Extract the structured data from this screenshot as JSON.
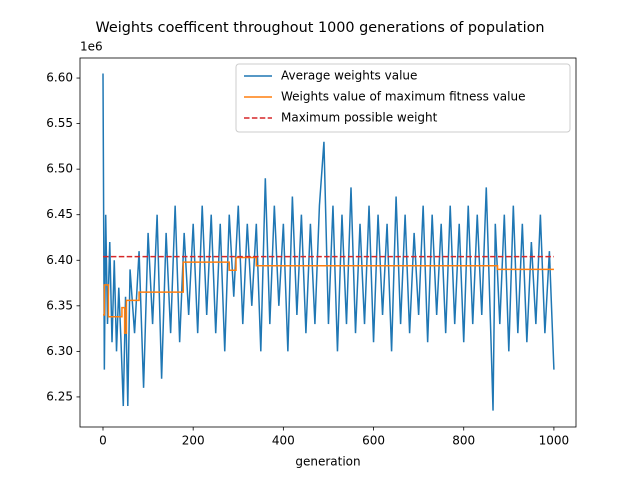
{
  "chart_data": {
    "type": "line",
    "title": "Weights coefficent throughout 1000 generations of population",
    "x_label": "generation",
    "y_offset_label": "1e6",
    "xlim": [
      -51,
      1049
    ],
    "ylim": [
      6.217,
      6.622
    ],
    "xticks": [
      0,
      200,
      400,
      600,
      800,
      1000
    ],
    "yticks": [
      6.25,
      {
        "value": 6.3,
        "label": "6.30"
      },
      6.35,
      {
        "value": 6.4,
        "label": "6.40"
      },
      6.45,
      {
        "value": 6.5,
        "label": "6.50"
      },
      6.55,
      {
        "value": 6.6,
        "label": "6.60"
      }
    ],
    "legend": "upper right",
    "series": [
      {
        "name": "Average weights value",
        "color": "#1f77b4",
        "linestyle": "solid",
        "x": [
          0,
          3,
          6,
          10,
          15,
          20,
          25,
          30,
          35,
          40,
          45,
          50,
          55,
          60,
          70,
          80,
          90,
          100,
          110,
          120,
          130,
          140,
          150,
          160,
          170,
          180,
          190,
          200,
          210,
          220,
          230,
          240,
          250,
          260,
          270,
          280,
          290,
          300,
          310,
          320,
          330,
          340,
          350,
          360,
          370,
          380,
          390,
          400,
          410,
          420,
          430,
          440,
          450,
          460,
          470,
          480,
          490,
          500,
          510,
          520,
          530,
          540,
          550,
          560,
          570,
          580,
          590,
          600,
          610,
          620,
          630,
          640,
          650,
          660,
          670,
          680,
          690,
          700,
          710,
          720,
          730,
          740,
          750,
          760,
          770,
          780,
          790,
          800,
          810,
          820,
          830,
          840,
          850,
          860,
          865,
          870,
          880,
          890,
          900,
          910,
          920,
          930,
          940,
          950,
          960,
          970,
          980,
          990,
          1000
        ],
        "values": [
          6.605,
          6.28,
          6.45,
          6.33,
          6.42,
          6.31,
          6.4,
          6.3,
          6.37,
          6.31,
          6.24,
          6.36,
          6.24,
          6.39,
          6.32,
          6.41,
          6.26,
          6.43,
          6.33,
          6.45,
          6.27,
          6.43,
          6.32,
          6.46,
          6.31,
          6.43,
          6.34,
          6.44,
          6.32,
          6.46,
          6.34,
          6.45,
          6.32,
          6.44,
          6.3,
          6.45,
          6.36,
          6.46,
          6.33,
          6.44,
          6.35,
          6.44,
          6.3,
          6.49,
          6.33,
          6.46,
          6.35,
          6.44,
          6.3,
          6.47,
          6.34,
          6.45,
          6.32,
          6.44,
          6.33,
          6.46,
          6.53,
          6.33,
          6.46,
          6.3,
          6.45,
          6.33,
          6.48,
          6.32,
          6.44,
          6.33,
          6.46,
          6.31,
          6.45,
          6.34,
          6.44,
          6.3,
          6.47,
          6.33,
          6.45,
          6.32,
          6.43,
          6.34,
          6.46,
          6.31,
          6.45,
          6.34,
          6.44,
          6.32,
          6.46,
          6.33,
          6.44,
          6.31,
          6.46,
          6.33,
          6.45,
          6.34,
          6.48,
          6.32,
          6.235,
          6.44,
          6.33,
          6.45,
          6.3,
          6.46,
          6.32,
          6.44,
          6.31,
          6.42,
          6.33,
          6.45,
          6.32,
          6.41,
          6.28
        ]
      },
      {
        "name": "Weights value of maximum fitness value",
        "color": "#ff7f0e",
        "linestyle": "solid",
        "x": [
          0,
          3,
          3,
          12,
          12,
          42,
          42,
          48,
          48,
          52,
          52,
          80,
          80,
          178,
          178,
          280,
          280,
          295,
          295,
          340,
          340,
          875,
          875,
          1000
        ],
        "values": [
          6.34,
          6.34,
          6.373,
          6.373,
          6.338,
          6.338,
          6.348,
          6.348,
          6.32,
          6.32,
          6.356,
          6.356,
          6.365,
          6.365,
          6.398,
          6.398,
          6.389,
          6.389,
          6.403,
          6.403,
          6.394,
          6.394,
          6.39,
          6.39
        ]
      },
      {
        "name": "Maximum possible weight",
        "color": "#d62728",
        "linestyle": "dashed",
        "x": [
          0,
          1000
        ],
        "values": [
          6.404,
          6.404
        ]
      }
    ]
  }
}
